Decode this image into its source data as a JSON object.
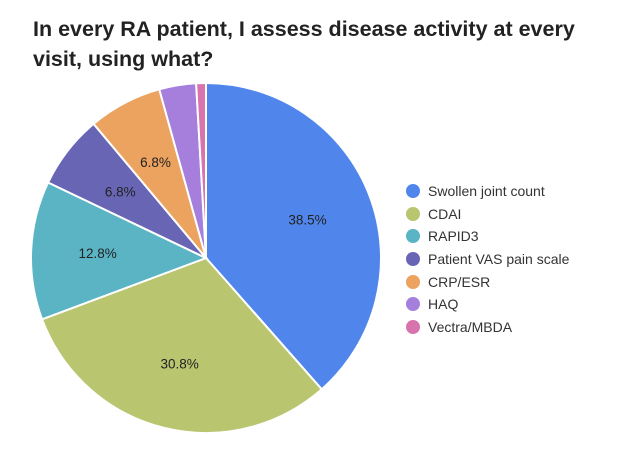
{
  "chart_data": {
    "type": "pie",
    "title": "In every RA patient, I assess disease activity at every visit, using what?",
    "legend_position": "right",
    "slices": [
      {
        "label": "Swollen joint count",
        "value": 38.5,
        "data_label": "38.5%",
        "color": "#5086ec"
      },
      {
        "label": "CDAI",
        "value": 30.8,
        "data_label": "30.8%",
        "color": "#bac56f"
      },
      {
        "label": "RAPID3",
        "value": 12.8,
        "data_label": "12.8%",
        "color": "#5ab4c4"
      },
      {
        "label": "Patient VAS pain scale",
        "value": 6.8,
        "data_label": "6.8%",
        "color": "#6865b5"
      },
      {
        "label": "CRP/ESR",
        "value": 6.8,
        "data_label": "6.8%",
        "color": "#eba35f"
      },
      {
        "label": "HAQ",
        "value": 3.4,
        "data_label": "",
        "color": "#a67fdd"
      },
      {
        "label": "Vectra/MBDA",
        "value": 0.9,
        "data_label": "",
        "color": "#d873ae"
      }
    ]
  }
}
